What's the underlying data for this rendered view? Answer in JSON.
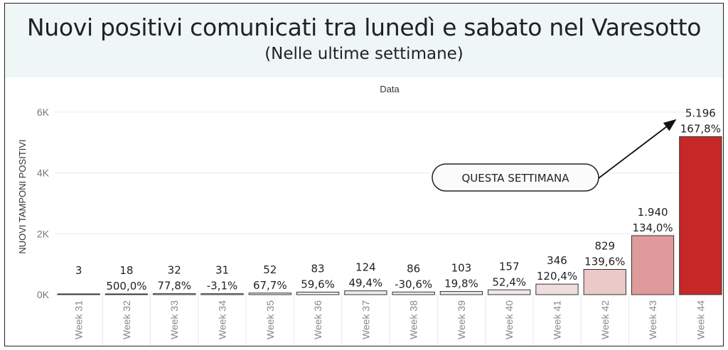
{
  "title": "Nuovi positivi comunicati tra lunedì e sabato nel Varesotto",
  "subtitle": "(Nelle ultime settimane)",
  "chart_data": {
    "type": "bar",
    "column_header": "Data",
    "ylabel": "NUOVI TAMPONI POSITIVI",
    "ylim": [
      0,
      6000
    ],
    "yticks": [
      {
        "value": 0,
        "label": "0K"
      },
      {
        "value": 2000,
        "label": "2K"
      },
      {
        "value": 4000,
        "label": "4K"
      },
      {
        "value": 6000,
        "label": "6K"
      }
    ],
    "categories": [
      "Week 31",
      "Week 32",
      "Week 33",
      "Week 34",
      "Week 35",
      "Week 36",
      "Week 37",
      "Week 38",
      "Week 39",
      "Week 40",
      "Week 41",
      "Week 42",
      "Week 43",
      "Week 44"
    ],
    "values": [
      3,
      18,
      32,
      31,
      52,
      83,
      124,
      86,
      103,
      157,
      346,
      829,
      1940,
      5196
    ],
    "value_labels": [
      "3",
      "18",
      "32",
      "31",
      "52",
      "83",
      "124",
      "86",
      "103",
      "157",
      "346",
      "829",
      "1.940",
      "5.196"
    ],
    "pct_labels": [
      "",
      "500,0%",
      "77,8%",
      "-3,1%",
      "67,7%",
      "59,6%",
      "49,4%",
      "-30,6%",
      "19,8%",
      "52,4%",
      "120,4%",
      "139,6%",
      "134,0%",
      "167,8%"
    ],
    "bar_colors": [
      "#f3ecec",
      "#f3ecec",
      "#f3ecec",
      "#f3ecec",
      "#f3ecec",
      "#f2ebeb",
      "#f2eaea",
      "#f2ebeb",
      "#f2eaea",
      "#f1e8e8",
      "#efdcdc",
      "#ebc9c9",
      "#df9b9b",
      "#c62828"
    ],
    "annotation": "QUESTA SETTIMANA"
  }
}
